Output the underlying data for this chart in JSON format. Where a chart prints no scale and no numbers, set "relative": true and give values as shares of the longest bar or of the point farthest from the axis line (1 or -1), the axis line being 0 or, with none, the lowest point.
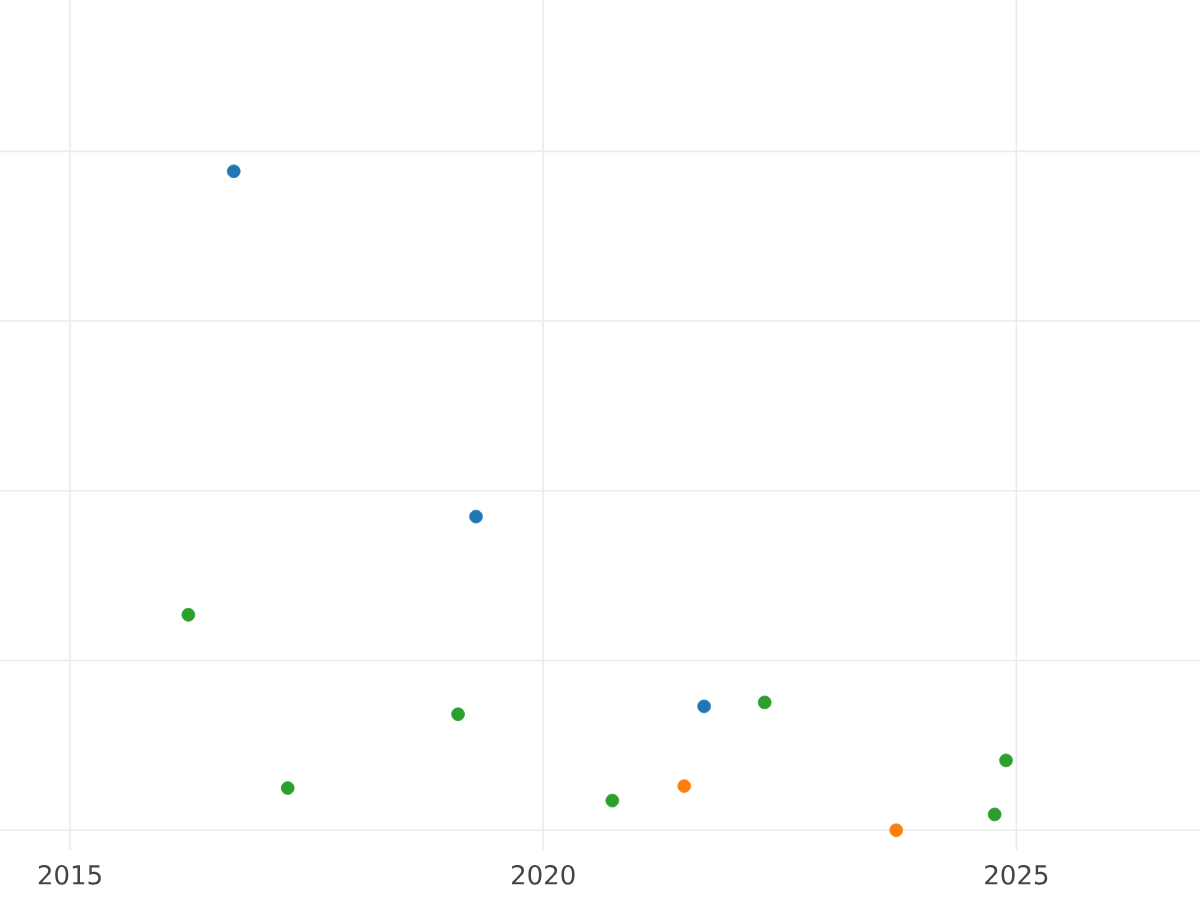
{
  "chart_data": {
    "type": "scatter",
    "relative": true,
    "marker": "circle",
    "grid": true,
    "tick_labels": "x",
    "xlim": [
      2014.26,
      2026.94
    ],
    "xticks": [
      2015,
      2020,
      2025
    ],
    "series": [
      {
        "color": "#1f77b4",
        "x": [
          2016.73,
          2019.29,
          2021.7
        ],
        "values": [
          1.0,
          0.476,
          0.188
        ]
      },
      {
        "color": "#ff7f0e",
        "x": [
          2021.49,
          2023.73
        ],
        "values": [
          0.067,
          0.0
        ]
      },
      {
        "color": "#2ca02c",
        "x": [
          2016.25,
          2017.3,
          2019.1,
          2020.73,
          2022.34,
          2024.89,
          2024.77
        ],
        "values": [
          0.327,
          0.064,
          0.176,
          0.045,
          0.194,
          0.106,
          0.024
        ]
      }
    ]
  }
}
